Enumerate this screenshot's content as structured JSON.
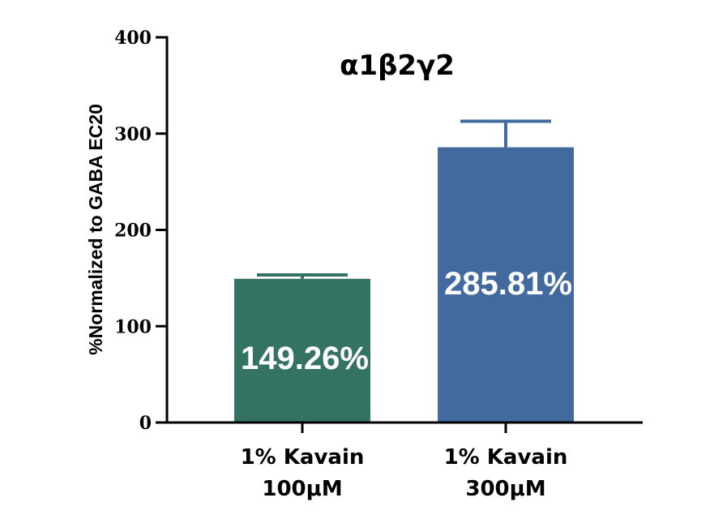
{
  "chart_data": {
    "type": "bar",
    "title": "α1β2γ2",
    "ylabel": "%Normalized to GABA EC20",
    "xlabel": "",
    "ylim": [
      0,
      400
    ],
    "yticks": [
      0,
      100,
      200,
      300,
      400
    ],
    "categories": [
      [
        "1% Kavain",
        "100μM"
      ],
      [
        "1% Kavain",
        "300μM"
      ]
    ],
    "values": [
      149.26,
      285.81
    ],
    "errors": [
      4,
      27
    ],
    "data_labels": [
      "149.26%",
      "285.81%"
    ],
    "colors": [
      "#347264",
      "#436a9e"
    ],
    "grid": false,
    "legend": "none"
  }
}
